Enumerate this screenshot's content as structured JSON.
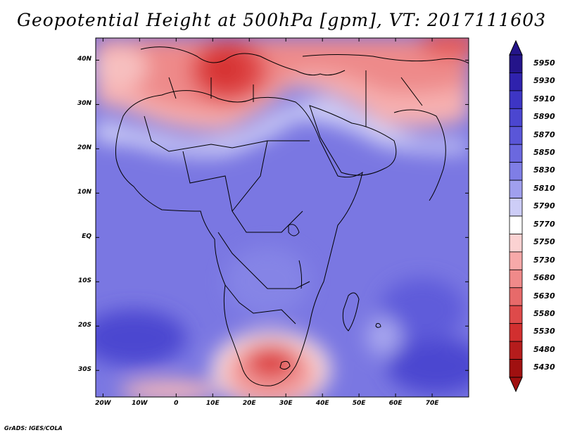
{
  "title": "Geopotential Height at 500hPa [gpm], VT: 2017111603",
  "credit": "GrADS: IGES/COLA",
  "lat_ticks": [
    "40N",
    "30N",
    "20N",
    "10N",
    "EQ",
    "10S",
    "20S",
    "30S"
  ],
  "lat_values": [
    40,
    30,
    20,
    10,
    0,
    -10,
    -20,
    -30
  ],
  "lon_ticks": [
    "20W",
    "10W",
    "0",
    "10E",
    "20E",
    "30E",
    "40E",
    "50E",
    "60E",
    "70E"
  ],
  "lon_values": [
    -20,
    -10,
    0,
    10,
    20,
    30,
    40,
    50,
    60,
    70
  ],
  "map_extent": {
    "lon": [
      -22,
      80
    ],
    "lat": [
      -36,
      45
    ]
  },
  "colorbar": {
    "levels": [
      "5950",
      "5930",
      "5910",
      "5890",
      "5870",
      "5850",
      "5830",
      "5810",
      "5790",
      "5770",
      "5750",
      "5730",
      "5680",
      "5630",
      "5580",
      "5530",
      "5480",
      "5430"
    ],
    "colors": [
      "#24148a",
      "#2f22ad",
      "#3d35c4",
      "#4b46d0",
      "#5a56d8",
      "#6b68df",
      "#7f7ee6",
      "#a09fee",
      "#cdcdf7",
      "#ffffff",
      "#fbd2d2",
      "#f7a9a9",
      "#f08a8a",
      "#e76a6a",
      "#de4a4a",
      "#d22f2f",
      "#b51c1c",
      "#a01010"
    ]
  }
}
